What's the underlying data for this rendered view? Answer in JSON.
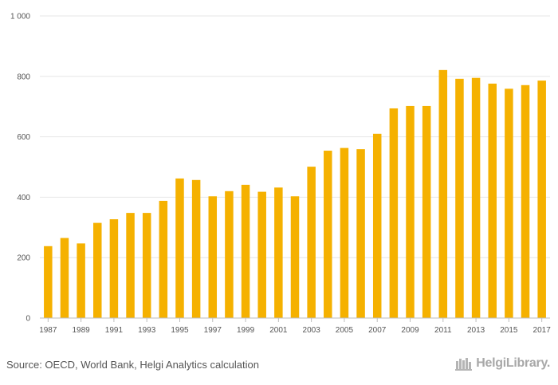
{
  "chart_data": {
    "type": "bar",
    "categories": [
      "1987",
      "1988",
      "1989",
      "1990",
      "1991",
      "1992",
      "1993",
      "1994",
      "1995",
      "1996",
      "1997",
      "1998",
      "1999",
      "2000",
      "2001",
      "2002",
      "2003",
      "2004",
      "2005",
      "2006",
      "2007",
      "2008",
      "2009",
      "2010",
      "2011",
      "2012",
      "2013",
      "2014",
      "2015",
      "2016",
      "2017"
    ],
    "values": [
      238,
      265,
      247,
      315,
      327,
      348,
      348,
      388,
      462,
      457,
      403,
      420,
      441,
      418,
      432,
      403,
      501,
      554,
      563,
      559,
      610,
      694,
      702,
      702,
      821,
      792,
      795,
      776,
      759,
      771,
      786
    ],
    "x_tick_labels": [
      "1987",
      "1989",
      "1991",
      "1993",
      "1995",
      "1997",
      "1999",
      "2001",
      "2003",
      "2005",
      "2007",
      "2009",
      "2011",
      "2013",
      "2015",
      "2017"
    ],
    "y_ticks": [
      0,
      200,
      400,
      600,
      800,
      1000
    ],
    "y_tick_labels": [
      "0",
      "200",
      "400",
      "600",
      "800",
      "1 000"
    ],
    "ylim": [
      0,
      1000
    ],
    "grid": true,
    "bar_color": "#f5b100"
  },
  "footer": {
    "source": "Source: OECD, World Bank, Helgi Analytics calculation",
    "logo_text": "HelgiLibrary."
  }
}
